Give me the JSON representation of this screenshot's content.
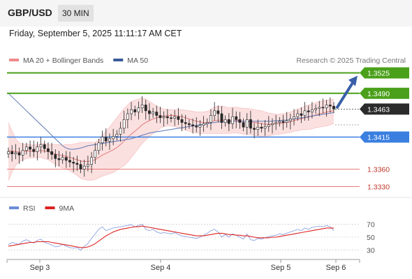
{
  "header": {
    "pair": "GBP/USD",
    "timeframe": "30 MIN"
  },
  "datetime": "Friday, September 5, 2025 11:11:17 AM CET",
  "legend": {
    "items": [
      {
        "label": "MA 20 + Bollinger Bands",
        "color": "#f08a8a"
      },
      {
        "label": "MA 50",
        "color": "#3a5a9a"
      }
    ],
    "credit": "Research © 2025 Trading Central"
  },
  "rsi_legend": {
    "items": [
      {
        "label": "RSI",
        "color": "#6b8cd8"
      },
      {
        "label": "9MA",
        "color": "#dd2222"
      }
    ]
  },
  "colors": {
    "resistance": "#4aa01a",
    "support": "#3a7fe0",
    "weak_support": "#e05050",
    "price_label": "#2b2b2b",
    "arrow": "#3a5fa8"
  },
  "chart_data": [
    {
      "type": "candlestick",
      "x_ticks": [
        "Sep 3",
        "Sep 4",
        "Sep 5",
        "Sep 6"
      ],
      "ylim": [
        1.3315,
        1.354
      ],
      "levels": [
        {
          "value": 1.3525,
          "label": "1.3525",
          "kind": "resistance"
        },
        {
          "value": 1.349,
          "label": "1.3490",
          "kind": "resistance"
        },
        {
          "value": 1.3463,
          "label": "1.3463",
          "kind": "current"
        },
        {
          "value": 1.3415,
          "label": "1.3415",
          "kind": "support"
        },
        {
          "value": 1.336,
          "label": "1.3360",
          "kind": "weak_support"
        },
        {
          "value": 1.333,
          "label": "1.3330",
          "kind": "weak_support"
        }
      ],
      "close_series": [
        1.339,
        1.3386,
        1.3388,
        1.3384,
        1.3392,
        1.3398,
        1.3394,
        1.339,
        1.3398,
        1.3402,
        1.3395,
        1.339,
        1.3385,
        1.3378,
        1.3376,
        1.338,
        1.3375,
        1.3372,
        1.337,
        1.3368,
        1.336,
        1.3365,
        1.3368,
        1.338,
        1.3392,
        1.3405,
        1.3415,
        1.3408,
        1.3412,
        1.3416,
        1.342,
        1.343,
        1.3445,
        1.3455,
        1.3462,
        1.3458,
        1.3465,
        1.347,
        1.346,
        1.3455,
        1.3458,
        1.3452,
        1.3448,
        1.345,
        1.3448,
        1.3447,
        1.345,
        1.3445,
        1.344,
        1.3438,
        1.3436,
        1.3434,
        1.3432,
        1.3435,
        1.3438,
        1.344,
        1.3452,
        1.346,
        1.3455,
        1.344,
        1.3445,
        1.3438,
        1.345,
        1.3445,
        1.344,
        1.3432,
        1.3445,
        1.343,
        1.3428,
        1.3432,
        1.343,
        1.3433,
        1.3436,
        1.3438,
        1.344,
        1.3442,
        1.344,
        1.3443,
        1.3446,
        1.345,
        1.3455,
        1.3452,
        1.346,
        1.3458,
        1.3462,
        1.3464,
        1.3466,
        1.3465,
        1.347,
        1.3468,
        1.3463
      ],
      "ma20": [
        1.3392,
        1.3391,
        1.339,
        1.3389,
        1.339,
        1.3391,
        1.3391,
        1.339,
        1.3391,
        1.3392,
        1.3391,
        1.339,
        1.3388,
        1.3386,
        1.3384,
        1.3383,
        1.3382,
        1.338,
        1.3378,
        1.3376,
        1.3374,
        1.3373,
        1.3373,
        1.3374,
        1.3376,
        1.338,
        1.3384,
        1.3387,
        1.339,
        1.3393,
        1.3397,
        1.3402,
        1.3408,
        1.3414,
        1.342,
        1.3425,
        1.343,
        1.3436,
        1.344,
        1.3443,
        1.3446,
        1.3448,
        1.345,
        1.3451,
        1.3452,
        1.3452,
        1.3452,
        1.3451,
        1.345,
        1.3448,
        1.3446,
        1.3444,
        1.3442,
        1.3441,
        1.344,
        1.344,
        1.3441,
        1.3443,
        1.3444,
        1.3444,
        1.3444,
        1.3443,
        1.3444,
        1.3444,
        1.3443,
        1.3442,
        1.3442,
        1.3441,
        1.344,
        1.3439,
        1.3438,
        1.3437,
        1.3437,
        1.3437,
        1.3438,
        1.3438,
        1.3439,
        1.344,
        1.3441,
        1.3443,
        1.3445,
        1.3446,
        1.3448,
        1.3449,
        1.3451,
        1.3453,
        1.3455,
        1.3456,
        1.3458,
        1.3459,
        1.346
      ],
      "bb_upper": [
        1.344,
        1.3425,
        1.3412,
        1.3405,
        1.3403,
        1.3403,
        1.3402,
        1.3401,
        1.3402,
        1.3404,
        1.3404,
        1.3403,
        1.3402,
        1.3402,
        1.3402,
        1.3401,
        1.3402,
        1.3402,
        1.3403,
        1.3404,
        1.3406,
        1.3406,
        1.3406,
        1.3406,
        1.3406,
        1.341,
        1.3418,
        1.3425,
        1.3432,
        1.344,
        1.3448,
        1.3456,
        1.3464,
        1.347,
        1.3476,
        1.3478,
        1.348,
        1.3482,
        1.348,
        1.3476,
        1.3472,
        1.3468,
        1.3465,
        1.3463,
        1.3462,
        1.3462,
        1.3462,
        1.3462,
        1.3462,
        1.3461,
        1.346,
        1.3459,
        1.3458,
        1.3458,
        1.3458,
        1.3459,
        1.3462,
        1.3466,
        1.3468,
        1.3468,
        1.3467,
        1.3465,
        1.3466,
        1.3466,
        1.3465,
        1.3464,
        1.3464,
        1.3463,
        1.3462,
        1.3461,
        1.346,
        1.3458,
        1.3456,
        1.3455,
        1.3454,
        1.3454,
        1.3455,
        1.3456,
        1.3458,
        1.346,
        1.3463,
        1.3465,
        1.3468,
        1.347,
        1.3472,
        1.3474,
        1.3476,
        1.3477,
        1.3478,
        1.3479,
        1.348
      ],
      "bb_lower": [
        1.334,
        1.3355,
        1.3366,
        1.3372,
        1.3376,
        1.3378,
        1.3379,
        1.3379,
        1.338,
        1.338,
        1.3378,
        1.3376,
        1.3372,
        1.3368,
        1.3364,
        1.3362,
        1.336,
        1.3357,
        1.3353,
        1.3349,
        1.3344,
        1.3342,
        1.3341,
        1.3341,
        1.3342,
        1.3345,
        1.3348,
        1.335,
        1.3352,
        1.3354,
        1.3358,
        1.3362,
        1.3366,
        1.3372,
        1.338,
        1.3388,
        1.3396,
        1.3404,
        1.341,
        1.3416,
        1.3421,
        1.3425,
        1.343,
        1.3433,
        1.3434,
        1.3434,
        1.3433,
        1.3431,
        1.3429,
        1.3427,
        1.3425,
        1.3423,
        1.3422,
        1.3421,
        1.3421,
        1.3421,
        1.3421,
        1.3421,
        1.3421,
        1.3421,
        1.3421,
        1.3421,
        1.3422,
        1.3422,
        1.3421,
        1.342,
        1.342,
        1.3419,
        1.3418,
        1.3417,
        1.3416,
        1.3416,
        1.3417,
        1.3418,
        1.342,
        1.342,
        1.3421,
        1.3422,
        1.3423,
        1.3425,
        1.3426,
        1.3427,
        1.3428,
        1.3428,
        1.3429,
        1.3431,
        1.3432,
        1.3433,
        1.3434,
        1.3436,
        1.3438
      ],
      "ma50": [
        1.349,
        1.3484,
        1.3478,
        1.3472,
        1.3466,
        1.346,
        1.3454,
        1.3448,
        1.3442,
        1.3436,
        1.343,
        1.3424,
        1.3418,
        1.3412,
        1.3406,
        1.34,
        1.3396,
        1.3394,
        1.3394,
        1.3395,
        1.3396,
        1.3398,
        1.34,
        1.3401,
        1.3402,
        1.3403,
        1.3404,
        1.3405,
        1.3406,
        1.3407,
        1.3408,
        1.3409,
        1.341,
        1.3411,
        1.3412,
        1.3414,
        1.3416,
        1.3418,
        1.342,
        1.3422,
        1.3423,
        1.3424,
        1.3425,
        1.3426,
        1.3427,
        1.3428,
        1.3429,
        1.343,
        1.3431,
        1.3432,
        1.3433,
        1.3434,
        1.3435,
        1.3436,
        1.3437,
        1.3438,
        1.3439,
        1.344,
        1.3441,
        1.3441,
        1.3441,
        1.3441,
        1.3442,
        1.3442,
        1.3442,
        1.3442,
        1.3442,
        1.3442,
        1.3442,
        1.3442,
        1.3442,
        1.3442,
        1.3442,
        1.3442,
        1.3443,
        1.3443,
        1.3444,
        1.3444,
        1.3445,
        1.3446,
        1.3447,
        1.3448,
        1.3449,
        1.345,
        1.3451,
        1.3452,
        1.3453,
        1.3454,
        1.3455,
        1.3456,
        1.3457
      ]
    },
    {
      "type": "line",
      "ylim": [
        20,
        80
      ],
      "y_ticks": [
        70,
        50,
        30
      ],
      "series": [
        {
          "name": "RSI",
          "values": [
            38,
            42,
            40,
            39,
            44,
            46,
            43,
            41,
            45,
            47,
            42,
            40,
            38,
            35,
            36,
            39,
            36,
            34,
            33,
            34,
            30,
            36,
            40,
            48,
            55,
            62,
            66,
            60,
            62,
            64,
            65,
            66,
            67,
            68,
            69,
            66,
            68,
            70,
            62,
            60,
            62,
            58,
            56,
            57,
            56,
            55,
            57,
            54,
            52,
            51,
            50,
            49,
            48,
            50,
            53,
            56,
            60,
            62,
            58,
            50,
            54,
            50,
            55,
            53,
            50,
            47,
            55,
            46,
            45,
            48,
            47,
            49,
            51,
            52,
            53,
            55,
            54,
            56,
            58,
            60,
            62,
            60,
            64,
            62,
            65,
            66,
            67,
            66,
            68,
            66,
            60
          ]
        },
        {
          "name": "9MA",
          "values": [
            36,
            37,
            38,
            39,
            40,
            41,
            42,
            42,
            43,
            43,
            43,
            43,
            42,
            41,
            40,
            39,
            38,
            37,
            36,
            35,
            34,
            34,
            35,
            37,
            40,
            44,
            48,
            52,
            55,
            58,
            60,
            62,
            63,
            64,
            65,
            66,
            66,
            67,
            66,
            65,
            64,
            63,
            62,
            61,
            60,
            59,
            58,
            57,
            56,
            55,
            54,
            53,
            52,
            52,
            52,
            53,
            54,
            55,
            56,
            56,
            55,
            54,
            54,
            53,
            53,
            52,
            52,
            51,
            50,
            49,
            49,
            49,
            49,
            50,
            50,
            51,
            52,
            53,
            54,
            55,
            56,
            57,
            58,
            59,
            60,
            61,
            62,
            63,
            64,
            64,
            64
          ]
        }
      ]
    }
  ]
}
